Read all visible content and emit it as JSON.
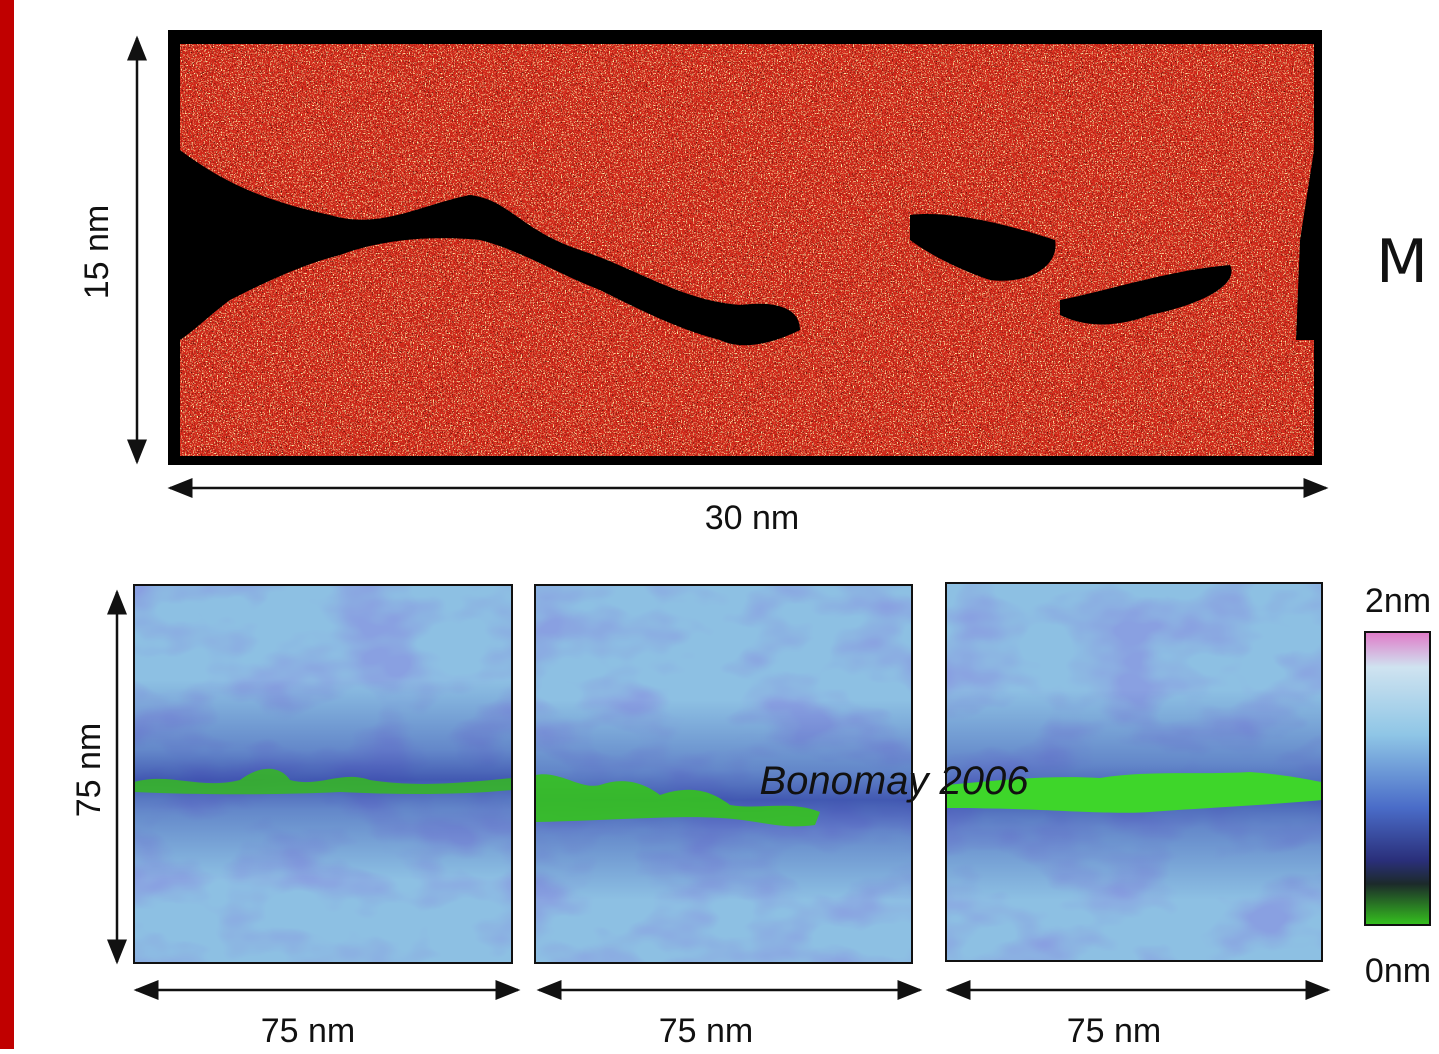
{
  "left_label": "15 nm",
  "bottom_label": "30 nm",
  "side_letter": "M",
  "panels": {
    "y_label": "75 nm",
    "x_labels": [
      "75 nm",
      "75 nm",
      "75 nm"
    ]
  },
  "colorbar": {
    "max": "2nm",
    "min": "0nm"
  },
  "citation": "Bonomay 2006"
}
